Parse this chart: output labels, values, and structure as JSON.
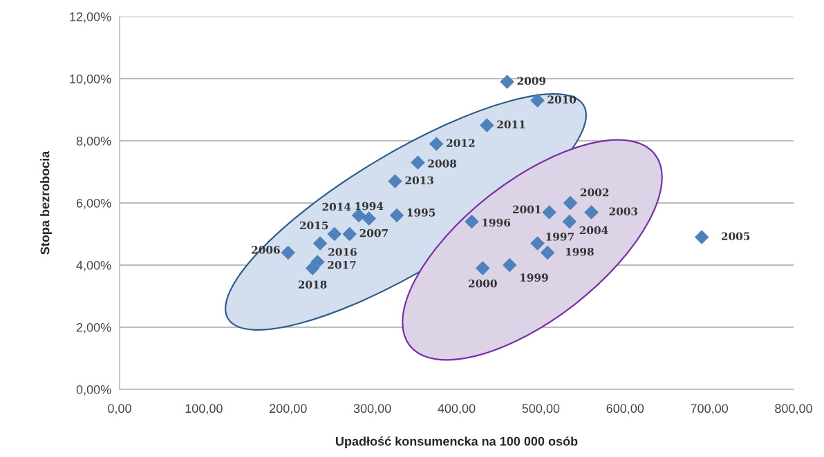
{
  "chart_data": {
    "type": "scatter",
    "xlabel": "Upadłość konsumencka na 100 000 osób",
    "ylabel": "Stopa bezrobocia",
    "x": [
      296,
      329,
      418,
      496,
      508,
      463,
      431,
      510,
      535,
      560,
      534,
      691,
      200,
      273,
      354,
      460,
      496,
      436,
      376,
      327,
      284,
      255,
      238,
      235,
      229
    ],
    "values": [
      5.5,
      5.6,
      5.4,
      4.7,
      4.4,
      4.0,
      3.9,
      5.7,
      6.0,
      5.7,
      5.4,
      4.9,
      4.4,
      5.0,
      7.3,
      9.9,
      9.3,
      8.5,
      7.9,
      6.7,
      5.6,
      5.0,
      4.7,
      4.1,
      3.9
    ],
    "annotations": [
      {
        "text": "1994",
        "x": 296,
        "y": 5.5
      },
      {
        "text": "1995",
        "x": 329,
        "y": 5.6
      },
      {
        "text": "1996",
        "x": 418,
        "y": 5.4
      },
      {
        "text": "1997",
        "x": 496,
        "y": 4.7
      },
      {
        "text": "1998",
        "x": 508,
        "y": 4.4
      },
      {
        "text": "1999",
        "x": 463,
        "y": 4.0
      },
      {
        "text": "2000",
        "x": 431,
        "y": 3.9
      },
      {
        "text": "2001",
        "x": 510,
        "y": 5.7
      },
      {
        "text": "2002",
        "x": 535,
        "y": 6.0
      },
      {
        "text": "2003",
        "x": 560,
        "y": 5.7
      },
      {
        "text": "2004",
        "x": 534,
        "y": 5.4
      },
      {
        "text": "2005",
        "x": 691,
        "y": 4.9
      },
      {
        "text": "2006",
        "x": 200,
        "y": 4.4
      },
      {
        "text": "2007",
        "x": 273,
        "y": 5.0
      },
      {
        "text": "2008",
        "x": 354,
        "y": 7.3
      },
      {
        "text": "2009",
        "x": 460,
        "y": 9.9
      },
      {
        "text": "2010",
        "x": 496,
        "y": 9.3
      },
      {
        "text": "2011",
        "x": 436,
        "y": 8.5
      },
      {
        "text": "2012",
        "x": 376,
        "y": 7.9
      },
      {
        "text": "2013",
        "x": 327,
        "y": 6.7
      },
      {
        "text": "2014",
        "x": 284,
        "y": 5.6
      },
      {
        "text": "2015",
        "x": 255,
        "y": 5.0
      },
      {
        "text": "2016",
        "x": 238,
        "y": 4.7
      },
      {
        "text": "2017",
        "x": 235,
        "y": 4.1
      },
      {
        "text": "2018",
        "x": 229,
        "y": 3.9
      }
    ],
    "color": "#4f81bd",
    "marker": "diamond",
    "grid": "y",
    "xlim": [
      0,
      800
    ],
    "ylim": [
      0,
      12
    ],
    "xticks": [
      {
        "value": 0,
        "label": "0,00"
      },
      {
        "value": 100,
        "label": "100,00"
      },
      {
        "value": 200,
        "label": "200,00"
      },
      {
        "value": 300,
        "label": "300,00"
      },
      {
        "value": 400,
        "label": "400,00"
      },
      {
        "value": 500,
        "label": "500,00"
      },
      {
        "value": 600,
        "label": "600,00"
      },
      {
        "value": 700,
        "label": "700,00"
      },
      {
        "value": 800,
        "label": "800,00"
      }
    ],
    "yticks": [
      {
        "value": 0,
        "label": "0,00%"
      },
      {
        "value": 2,
        "label": "2,00%"
      },
      {
        "value": 4,
        "label": "4,00%"
      },
      {
        "value": 6,
        "label": "6,00%"
      },
      {
        "value": 8,
        "label": "8,00%"
      },
      {
        "value": 10,
        "label": "10,00%"
      },
      {
        "value": 12,
        "label": "12,00%"
      }
    ]
  }
}
